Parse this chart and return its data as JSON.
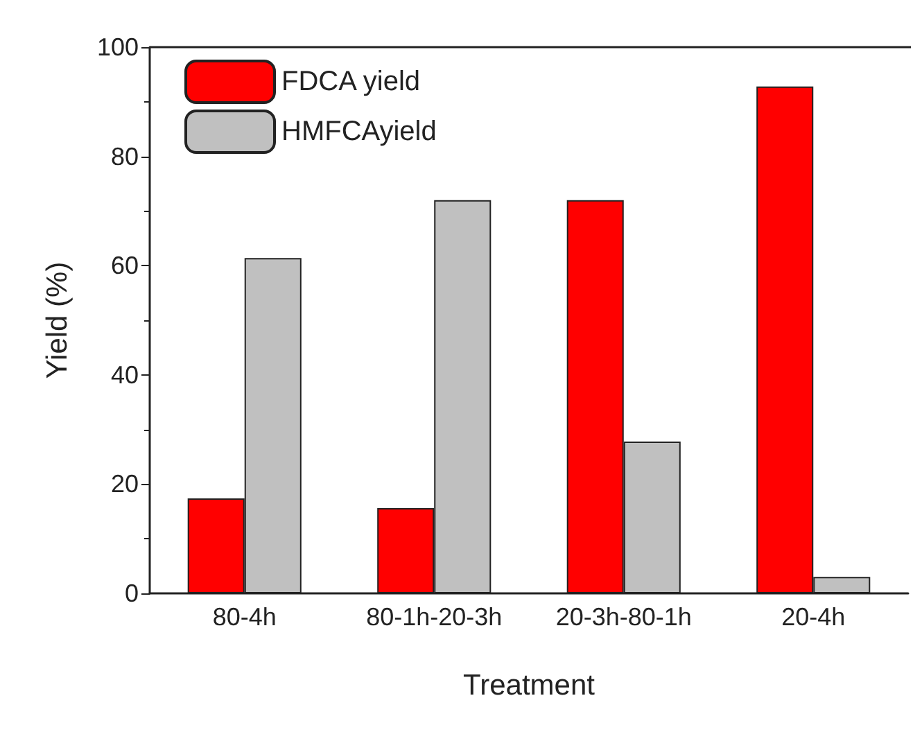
{
  "chart_data": {
    "type": "bar",
    "xlabel": "Treatment",
    "ylabel": "Yield (%)",
    "categories": [
      "80-4h",
      "80-1h-20-3h",
      "20-3h-80-1h",
      "20-4h"
    ],
    "series": [
      {
        "name": "FDCA yield",
        "color": "#ff0000",
        "values": [
          17.4,
          15.6,
          72.0,
          92.8
        ]
      },
      {
        "name": "HMFCAyield",
        "color": "#c0c0c0",
        "values": [
          61.4,
          72.0,
          27.8,
          3.0
        ]
      }
    ],
    "ylim": [
      0,
      100
    ],
    "yticks": [
      0,
      20,
      40,
      60,
      80,
      100
    ],
    "grid": false,
    "legend": "top left"
  }
}
